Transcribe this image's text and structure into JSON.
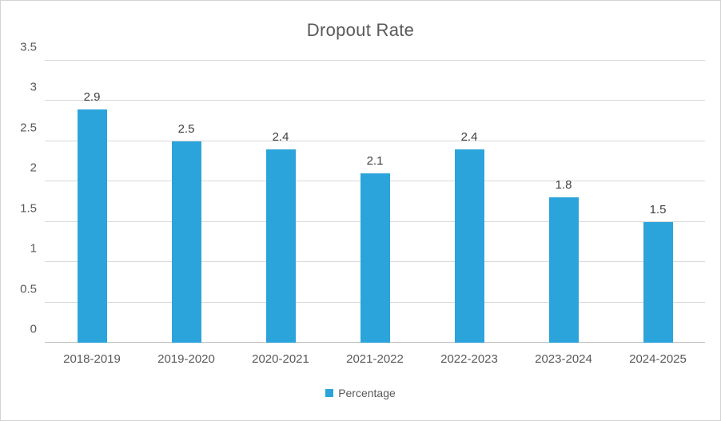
{
  "chart_data": {
    "type": "bar",
    "title": "Dropout Rate",
    "categories": [
      "2018-2019",
      "2019-2020",
      "2020-2021",
      "2021-2022",
      "2022-2023",
      "2023-2024",
      "2024-2025"
    ],
    "series": [
      {
        "name": "Percentage",
        "values": [
          2.9,
          2.5,
          2.4,
          2.1,
          2.4,
          1.8,
          1.5
        ]
      }
    ],
    "xlabel": "",
    "ylabel": "",
    "ylim": [
      0,
      3.5
    ],
    "yticks": [
      0,
      0.5,
      1,
      1.5,
      2,
      2.5,
      3,
      3.5
    ],
    "grid": true,
    "legend_position": "bottom"
  },
  "colors": {
    "bar": "#2BA4DC",
    "title_text": "#595959",
    "axis_text": "#595959",
    "value_label_text": "#404040",
    "gridline": "#D9D9D9",
    "baseline": "#BFBFBF",
    "border": "#D3D3D3"
  }
}
